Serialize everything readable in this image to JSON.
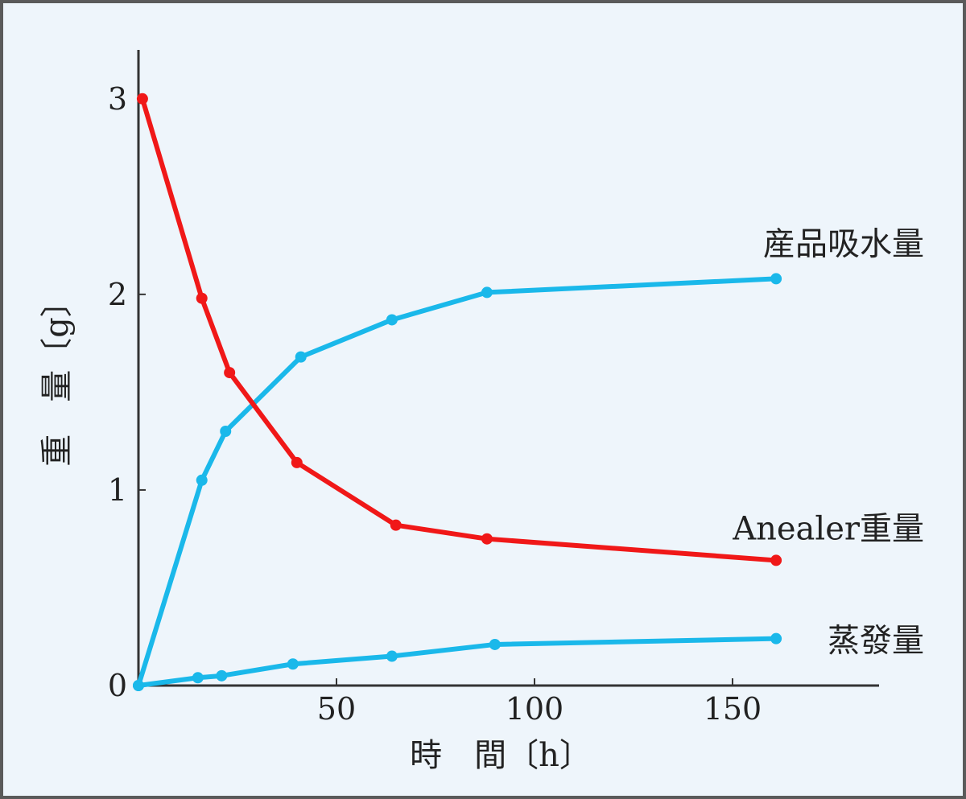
{
  "chart_data": {
    "type": "line",
    "xlabel": "時　間〔h〕",
    "ylabel": "重　量〔g〕",
    "xlim": [
      0,
      187
    ],
    "ylim": [
      0,
      3.25
    ],
    "xticks": [
      50,
      100,
      150
    ],
    "xtick_labels": [
      "50",
      "100",
      "150"
    ],
    "yticks": [
      0,
      1,
      2,
      3
    ],
    "ytick_labels": [
      "0",
      "1",
      "2",
      "3"
    ],
    "grid": false,
    "series": [
      {
        "name": "産品吸水量",
        "color": "#1ab8ea",
        "x": [
          0,
          16,
          22,
          41,
          64,
          88,
          161
        ],
        "y": [
          0,
          1.05,
          1.3,
          1.68,
          1.87,
          2.01,
          2.08
        ]
      },
      {
        "name": "Anealer重量",
        "color": "#f01818",
        "x": [
          1,
          16,
          23,
          40,
          65,
          88,
          161
        ],
        "y": [
          3.0,
          1.98,
          1.6,
          1.14,
          0.82,
          0.75,
          0.64
        ]
      },
      {
        "name": "蒸發量",
        "color": "#1ab8ea",
        "x": [
          0,
          15,
          21,
          39,
          64,
          90,
          161
        ],
        "y": [
          0,
          0.04,
          0.05,
          0.11,
          0.15,
          0.21,
          0.24
        ]
      }
    ]
  }
}
